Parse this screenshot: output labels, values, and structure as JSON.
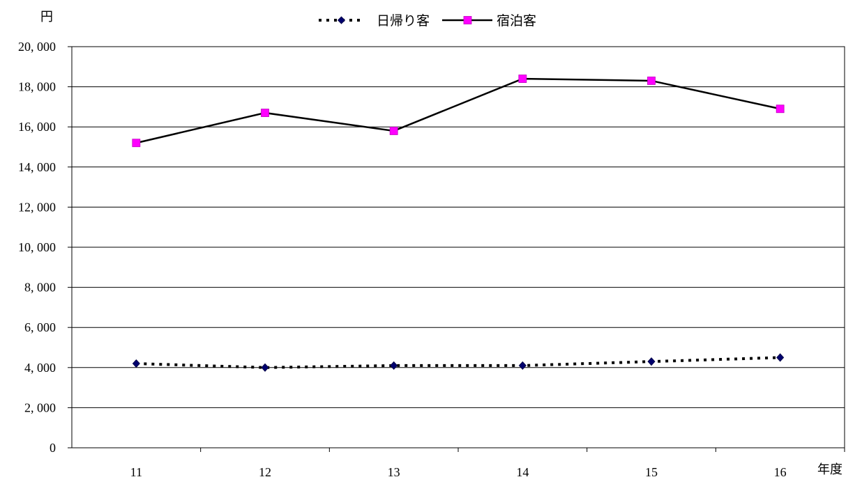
{
  "chart_data": {
    "type": "line",
    "categories": [
      "11",
      "12",
      "13",
      "14",
      "15",
      "16"
    ],
    "series": [
      {
        "name": "日帰り客",
        "values": [
          4200,
          4000,
          4100,
          4100,
          4300,
          4500
        ],
        "color": "#00006e",
        "line_style": "dotted",
        "marker": "diamond"
      },
      {
        "name": "宿泊客",
        "values": [
          15200,
          16700,
          15800,
          18400,
          18300,
          16900
        ],
        "color": "#ff00ff",
        "line_style": "solid",
        "marker": "square"
      }
    ],
    "ylabel": "円",
    "xlabel": "年度",
    "ylim": [
      0,
      20000
    ],
    "yticks": [
      0,
      2000,
      4000,
      6000,
      8000,
      10000,
      12000,
      14000,
      16000,
      18000,
      20000
    ],
    "ytick_labels": [
      "0",
      "2, 000",
      "4, 000",
      "6, 000",
      "8, 000",
      "10, 000",
      "12, 000",
      "14, 000",
      "16, 000",
      "18, 000",
      "20, 000"
    ],
    "grid": "horizontal",
    "legend_position": "top-center"
  }
}
